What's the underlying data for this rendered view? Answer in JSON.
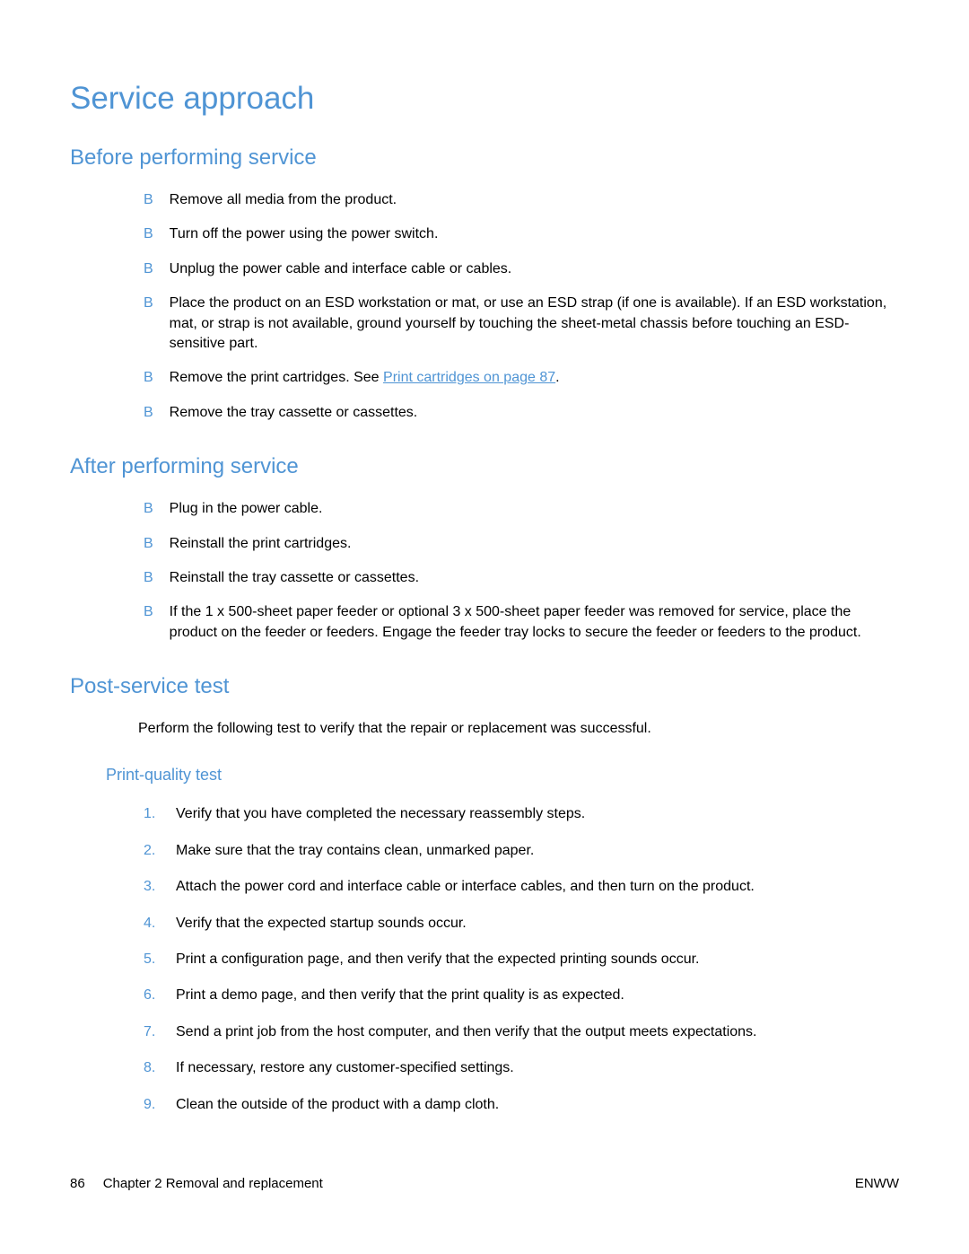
{
  "colors": {
    "heading": "#4f94d4",
    "text": "#000000",
    "link": "#4f94d4",
    "background": "#ffffff"
  },
  "title": "Service approach",
  "sections": {
    "before": {
      "heading": "Before performing service",
      "items": [
        "Remove all media from the product.",
        "Turn off the power using the power switch.",
        "Unplug the power cable and interface cable or cables.",
        "Place the product on an ESD workstation or mat, or use an ESD strap (if one is available). If an ESD workstation, mat, or strap is not available, ground yourself by touching the sheet-metal chassis before touching an ESD-sensitive part.",
        "",
        "Remove the tray cassette or cassettes."
      ],
      "item5_prefix": "Remove the print cartridges. See ",
      "item5_link": "Print cartridges on page 87",
      "item5_suffix": "."
    },
    "after": {
      "heading": "After performing service",
      "items": [
        "Plug in the power cable.",
        "Reinstall the print cartridges.",
        "Reinstall the tray cassette or cassettes.",
        "If the 1 x 500-sheet paper feeder or optional 3 x 500-sheet paper feeder was removed for service, place the product on the feeder or feeders. Engage the feeder tray locks to secure the feeder or feeders to the product."
      ]
    },
    "post_service": {
      "heading": "Post-service test",
      "intro": "Perform the following test to verify that the repair or replacement was successful.",
      "subsection": {
        "heading": "Print-quality test",
        "items": [
          "Verify that you have completed the necessary reassembly steps.",
          "Make sure that the tray contains clean, unmarked paper.",
          "Attach the power cord and interface cable or interface cables, and then turn on the product.",
          "Verify that the expected startup sounds occur.",
          "Print a configuration page, and then verify that the expected printing sounds occur.",
          "Print a demo page, and then verify that the print quality is as expected.",
          "Send a print job from the host computer, and then verify that the output meets expectations.",
          "If necessary, restore any customer-specified settings.",
          "Clean the outside of the product with a damp cloth."
        ]
      }
    }
  },
  "footer": {
    "page_number": "86",
    "chapter": "Chapter 2   Removal and replacement",
    "right": "ENWW"
  },
  "bullet_char": "B"
}
